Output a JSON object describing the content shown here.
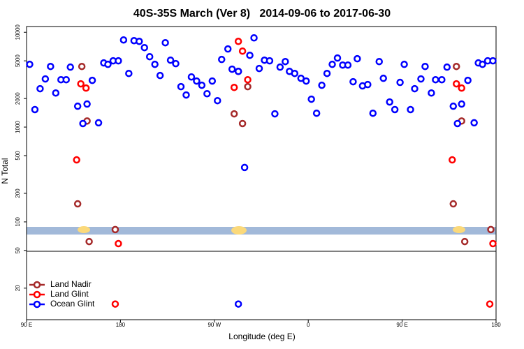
{
  "chart_data": {
    "type": "scatter",
    "title": "40S-35S March (Ver 8)   2014-09-06 to 2017-06-30",
    "x_label": "Longitude (deg E)",
    "y_label": "N Total",
    "xlim": [
      90,
      540
    ],
    "ylim": [
      9.3,
      11500
    ],
    "y_log": true,
    "legend": "lower left",
    "xticks": [
      {
        "value": 90,
        "label": "90 E"
      },
      180,
      {
        "value": 270,
        "label": "90 W"
      },
      {
        "value": 360,
        "label": "0"
      },
      {
        "value": 450,
        "label": "90 E"
      },
      {
        "value": 540,
        "label": "180"
      }
    ],
    "yticks": [
      20,
      50,
      100,
      200,
      500,
      1000,
      2000,
      5000,
      10000
    ],
    "series": [
      {
        "name": "Land Nadir",
        "color": "#a52a2a",
        "x": [
          143,
          148,
          139,
          150,
          175,
          289,
          293,
          297,
          302,
          502,
          507,
          499,
          510,
          535
        ],
        "values": [
          4360,
          1160,
          155,
          62,
          83,
          1380,
          3870,
          1090,
          2670,
          4360,
          1160,
          155,
          62,
          83
        ]
      },
      {
        "name": "Land Glint",
        "color": "#ff0000",
        "x": [
          138,
          142,
          147,
          178,
          175,
          293,
          289,
          297,
          302,
          498,
          502,
          507,
          537,
          534
        ],
        "values": [
          451,
          2860,
          2580,
          59,
          13.6,
          8020,
          2620,
          6330,
          3160,
          451,
          2860,
          2580,
          59,
          13.6
        ]
      },
      {
        "name": "Ocean Glint",
        "color": "#0000ff",
        "x": [
          93,
          98,
          103,
          108,
          113,
          118,
          123,
          128,
          132,
          139,
          144,
          148,
          153,
          159,
          164,
          168,
          173,
          178,
          183,
          188,
          193,
          198,
          203,
          208,
          213,
          218,
          223,
          228,
          233,
          238,
          243,
          248,
          253,
          258,
          263,
          268,
          273,
          277,
          283,
          287,
          293,
          299,
          304,
          308,
          313,
          318,
          323,
          328,
          333,
          338,
          342,
          347,
          353,
          358,
          363,
          368,
          373,
          378,
          383,
          388,
          393,
          398,
          403,
          407,
          412,
          417,
          422,
          428,
          432,
          438,
          443,
          448,
          452,
          458,
          462,
          468,
          472,
          478,
          482,
          488,
          493,
          499,
          503,
          507,
          513,
          519,
          523,
          527,
          532,
          537,
          293
        ],
        "values": [
          4590,
          1530,
          2540,
          3220,
          4360,
          2290,
          3160,
          3160,
          4290,
          1660,
          1090,
          1750,
          3110,
          1110,
          4750,
          4590,
          5000,
          5000,
          8300,
          3680,
          8160,
          8020,
          6890,
          5530,
          4590,
          3500,
          7760,
          5080,
          4670,
          2670,
          2180,
          3380,
          3060,
          2760,
          2250,
          3060,
          1900,
          5170,
          6670,
          4080,
          3870,
          375,
          5720,
          8730,
          4150,
          5080,
          5000,
          1380,
          4290,
          4910,
          3870,
          3680,
          3270,
          3060,
          1970,
          1400,
          2760,
          3680,
          4590,
          5350,
          4510,
          4510,
          3010,
          5260,
          2720,
          2810,
          1400,
          4910,
          3270,
          1840,
          1530,
          2960,
          4590,
          1530,
          2540,
          3220,
          4360,
          2290,
          3160,
          3160,
          4290,
          1660,
          1090,
          1750,
          3110,
          1110,
          4750,
          4590,
          5000,
          5000,
          13.6
        ]
      }
    ]
  }
}
